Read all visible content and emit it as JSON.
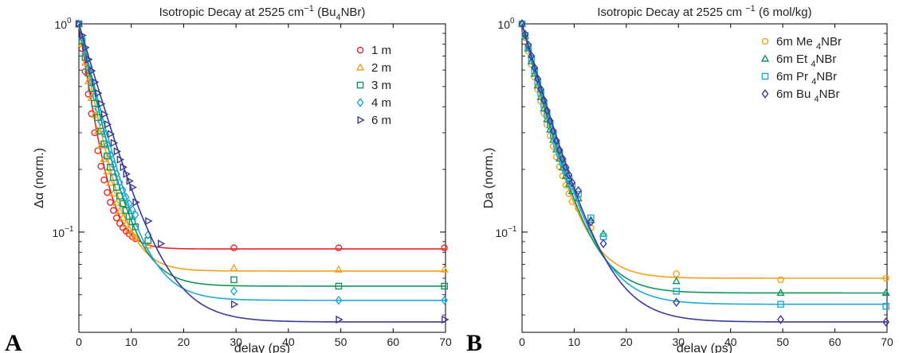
{
  "chart_data": [
    {
      "type": "scatter",
      "panel_label": "A",
      "title": {
        "main": "Isotropic Decay at 2525 cm",
        "sup": "−1",
        "after": " (Bu",
        "sub": "4",
        "end": "NBr)"
      },
      "xlabel": "delay (ps)",
      "ylabel": "Δα (norm.)",
      "xlim": [
        0,
        70
      ],
      "ylim": [
        0.033,
        1.0
      ],
      "yscale": "log",
      "x_ticks": [
        0,
        10,
        20,
        30,
        40,
        50,
        60,
        70
      ],
      "y_ticks": [
        {
          "value": 1.0,
          "base": "10",
          "exp": "0"
        },
        {
          "value": 0.1,
          "base": "10",
          "exp": "−1"
        }
      ],
      "grid": false,
      "legend_position": "top-right",
      "series": [
        {
          "name": "1 m",
          "marker": "circle",
          "color": "#e8262a",
          "plateau": 0.083,
          "tau": 2.4,
          "x": [
            0,
            0.6,
            1.2,
            1.8,
            2.4,
            3.0,
            3.6,
            4.2,
            4.8,
            5.4,
            6.0,
            6.6,
            7.2,
            7.8,
            8.4,
            9.0,
            9.6,
            10.2,
            10.8,
            29.6,
            49.6,
            69.8
          ],
          "y": [
            1.0,
            0.76,
            0.59,
            0.46,
            0.37,
            0.3,
            0.246,
            0.207,
            0.178,
            0.155,
            0.139,
            0.127,
            0.117,
            0.11,
            0.105,
            0.101,
            0.098,
            0.095,
            0.093,
            0.084,
            0.084,
            0.084
          ]
        },
        {
          "name": "2 m",
          "marker": "triangle-up",
          "color": "#f3a11d",
          "plateau": 0.065,
          "tau": 3.1,
          "x": [
            0,
            0.6,
            1.2,
            1.8,
            2.4,
            3.0,
            3.6,
            4.2,
            4.8,
            5.4,
            6.0,
            6.6,
            7.2,
            7.8,
            8.4,
            9.0,
            9.6,
            10.2,
            10.8,
            13.2,
            29.6,
            49.6,
            69.8
          ],
          "y": [
            1.0,
            0.8,
            0.65,
            0.53,
            0.44,
            0.365,
            0.305,
            0.26,
            0.224,
            0.195,
            0.172,
            0.153,
            0.138,
            0.126,
            0.117,
            0.109,
            0.103,
            0.098,
            0.094,
            0.086,
            0.067,
            0.066,
            0.066
          ]
        },
        {
          "name": "3 m",
          "marker": "square",
          "color": "#15935a",
          "plateau": 0.055,
          "tau": 3.6,
          "x": [
            0,
            0.6,
            1.2,
            1.8,
            2.4,
            3.0,
            3.6,
            4.2,
            4.8,
            5.4,
            6.0,
            6.6,
            7.2,
            7.8,
            8.4,
            9.0,
            9.6,
            10.2,
            10.8,
            13.2,
            29.6,
            49.6,
            69.8
          ],
          "y": [
            1.0,
            0.83,
            0.69,
            0.58,
            0.49,
            0.415,
            0.355,
            0.305,
            0.265,
            0.232,
            0.205,
            0.183,
            0.164,
            0.149,
            0.137,
            0.127,
            0.119,
            0.112,
            0.106,
            0.091,
            0.059,
            0.055,
            0.055
          ]
        },
        {
          "name": "4 m",
          "marker": "diamond",
          "color": "#1daad6",
          "plateau": 0.047,
          "tau": 4.0,
          "x": [
            0,
            0.6,
            1.2,
            1.8,
            2.4,
            3.0,
            3.6,
            4.2,
            4.8,
            5.4,
            6.0,
            6.6,
            7.2,
            7.8,
            8.4,
            9.0,
            9.6,
            10.2,
            10.8,
            13.2,
            29.6,
            49.6,
            69.8
          ],
          "y": [
            1.0,
            0.85,
            0.72,
            0.615,
            0.525,
            0.45,
            0.39,
            0.34,
            0.298,
            0.263,
            0.234,
            0.21,
            0.19,
            0.173,
            0.159,
            0.147,
            0.137,
            0.128,
            0.121,
            0.097,
            0.052,
            0.047,
            0.047
          ]
        },
        {
          "name": "6 m",
          "marker": "triangle-right",
          "color": "#3b3b95",
          "plateau": 0.037,
          "tau": 4.9,
          "x": [
            0,
            0.6,
            1.2,
            1.8,
            2.4,
            3.0,
            3.6,
            4.2,
            4.8,
            5.4,
            6.0,
            6.6,
            7.2,
            7.8,
            8.4,
            9.0,
            9.6,
            10.2,
            10.8,
            13.2,
            15.6,
            29.6,
            49.6,
            69.8
          ],
          "y": [
            1.0,
            0.88,
            0.77,
            0.675,
            0.595,
            0.525,
            0.465,
            0.413,
            0.368,
            0.329,
            0.296,
            0.268,
            0.244,
            0.223,
            0.205,
            0.19,
            0.176,
            0.164,
            0.139,
            0.113,
            0.088,
            0.045,
            0.038,
            0.038
          ]
        }
      ]
    },
    {
      "type": "scatter",
      "panel_label": "B",
      "title": {
        "main": "Isotropic Decay at 2525 cm ",
        "sup": "−1",
        "after": " (6 mol/kg)",
        "sub": "",
        "end": ""
      },
      "xlabel": "delay (ps)",
      "ylabel": "Da (norm.)",
      "xlim": [
        0,
        70
      ],
      "ylim": [
        0.033,
        1.0
      ],
      "yscale": "log",
      "x_ticks": [
        0,
        10,
        20,
        30,
        40,
        50,
        60,
        70
      ],
      "y_ticks": [
        {
          "value": 1.0,
          "base": "10",
          "exp": "0"
        },
        {
          "value": 0.1,
          "base": "10",
          "exp": "−1"
        }
      ],
      "grid": false,
      "legend_position": "top-right",
      "series": [
        {
          "name": "6m Me ",
          "name_sub": "4",
          "name_end": "NBr",
          "marker": "circle",
          "color": "#f3a11d",
          "plateau": 0.06,
          "tau": 4.0,
          "x": [
            0,
            0.6,
            1.2,
            1.8,
            2.4,
            3.0,
            3.6,
            4.2,
            4.8,
            5.4,
            6.0,
            6.6,
            7.2,
            7.8,
            8.4,
            9.0,
            9.6,
            10.8,
            13.2,
            29.6,
            49.6,
            69.8
          ],
          "y": [
            1.0,
            0.86,
            0.74,
            0.64,
            0.555,
            0.485,
            0.425,
            0.372,
            0.328,
            0.29,
            0.258,
            0.23,
            0.206,
            0.186,
            0.168,
            0.153,
            0.14,
            0.13,
            0.105,
            0.063,
            0.059,
            0.06
          ]
        },
        {
          "name": "6m Et ",
          "name_sub": "4",
          "name_end": "NBr",
          "marker": "triangle-up",
          "color": "#15935a",
          "plateau": 0.051,
          "tau": 4.3,
          "x": [
            0,
            0.6,
            1.2,
            1.8,
            2.4,
            3.0,
            3.6,
            4.2,
            4.8,
            5.4,
            6.0,
            6.6,
            7.2,
            7.8,
            8.4,
            9.0,
            9.6,
            10.8,
            13.2,
            15.6,
            29.6,
            49.6,
            69.8
          ],
          "y": [
            1.0,
            0.87,
            0.76,
            0.66,
            0.575,
            0.505,
            0.445,
            0.392,
            0.348,
            0.31,
            0.277,
            0.249,
            0.225,
            0.204,
            0.186,
            0.17,
            0.157,
            0.145,
            0.114,
            0.098,
            0.058,
            0.051,
            0.051
          ]
        },
        {
          "name": "6m Pr ",
          "name_sub": "4",
          "name_end": "NBr",
          "marker": "square",
          "color": "#1daad6",
          "plateau": 0.045,
          "tau": 4.6,
          "x": [
            0,
            0.6,
            1.2,
            1.8,
            2.4,
            3.0,
            3.6,
            4.2,
            4.8,
            5.4,
            6.0,
            6.6,
            7.2,
            7.8,
            8.4,
            9.0,
            9.6,
            10.8,
            13.2,
            15.6,
            29.6,
            49.6,
            69.8
          ],
          "y": [
            1.0,
            0.88,
            0.775,
            0.68,
            0.595,
            0.525,
            0.465,
            0.41,
            0.365,
            0.326,
            0.292,
            0.263,
            0.238,
            0.216,
            0.197,
            0.18,
            0.166,
            0.152,
            0.117,
            0.095,
            0.052,
            0.045,
            0.044
          ]
        },
        {
          "name": "6m Bu ",
          "name_sub": "4",
          "name_end": "NBr",
          "marker": "diamond",
          "color": "#3b3b95",
          "plateau": 0.037,
          "tau": 4.9,
          "x": [
            0,
            0.6,
            1.2,
            1.8,
            2.4,
            3.0,
            3.6,
            4.2,
            4.8,
            5.4,
            6.0,
            6.6,
            7.2,
            7.8,
            8.4,
            9.0,
            9.6,
            10.8,
            13.2,
            15.6,
            29.6,
            49.6,
            69.8
          ],
          "y": [
            1.0,
            0.89,
            0.79,
            0.7,
            0.615,
            0.545,
            0.485,
            0.43,
            0.383,
            0.342,
            0.306,
            0.275,
            0.248,
            0.225,
            0.205,
            0.188,
            0.173,
            0.158,
            0.112,
            0.088,
            0.046,
            0.038,
            0.037
          ]
        }
      ]
    }
  ]
}
